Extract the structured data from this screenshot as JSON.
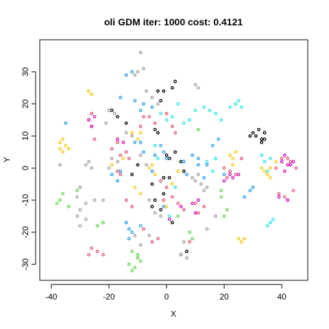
{
  "chart_data": {
    "type": "scatter",
    "title": "oli GDM iter: 1000 cost: 0.4121",
    "xlabel": "X",
    "ylabel": "Y",
    "xlim": [
      -44,
      49
    ],
    "ylim": [
      -35,
      40
    ],
    "xticks": [
      -40,
      -20,
      0,
      20,
      40
    ],
    "yticks": [
      -30,
      -20,
      -10,
      0,
      10,
      20,
      30
    ],
    "grid": false,
    "legend": "none",
    "marker": "open-circle",
    "series": [
      {
        "color": "#000000",
        "points": [
          [
            3,
            27
          ],
          [
            2,
            25
          ],
          [
            -1,
            24
          ],
          [
            -3,
            24
          ],
          [
            -2,
            21
          ],
          [
            -4,
            12
          ],
          [
            -3,
            11
          ],
          [
            -19,
            18
          ],
          [
            -17,
            16
          ],
          [
            -14,
            14
          ],
          [
            -12,
            -2
          ],
          [
            -10,
            1
          ],
          [
            -1,
            -3
          ],
          [
            -5,
            -5
          ],
          [
            -4,
            -10
          ],
          [
            -5,
            -12
          ],
          [
            -2,
            -13
          ],
          [
            -1,
            -8
          ],
          [
            1,
            -3
          ],
          [
            1,
            3
          ],
          [
            3,
            5
          ],
          [
            5,
            2
          ],
          [
            6,
            -1
          ],
          [
            0,
            4
          ],
          [
            2,
            -17
          ],
          [
            5,
            -27
          ],
          [
            7,
            -26
          ],
          [
            30,
            11
          ],
          [
            31,
            10
          ],
          [
            32,
            12
          ],
          [
            33,
            9
          ],
          [
            34,
            11
          ],
          [
            34,
            9
          ],
          [
            29,
            10
          ],
          [
            33,
            8
          ]
        ]
      },
      {
        "color": "#df536b",
        "points": [
          [
            -27,
            15
          ],
          [
            -26,
            17
          ],
          [
            -26,
            13
          ],
          [
            -25,
            9
          ],
          [
            -17,
            8
          ],
          [
            -16,
            4
          ],
          [
            -19,
            6
          ],
          [
            -8,
            16
          ],
          [
            -9,
            13
          ],
          [
            -6,
            16
          ],
          [
            -4,
            14
          ],
          [
            0,
            17
          ],
          [
            2,
            13
          ],
          [
            3,
            11
          ],
          [
            -14,
            5
          ],
          [
            -13,
            3
          ],
          [
            -16,
            -2
          ],
          [
            -17,
            -1
          ],
          [
            -14,
            -10
          ],
          [
            -12,
            -12
          ],
          [
            -26,
            -25
          ],
          [
            -27,
            -27
          ],
          [
            -24,
            -26
          ],
          [
            -22,
            -27
          ],
          [
            -8,
            -19
          ],
          [
            -5,
            -23
          ],
          [
            -3,
            -22
          ],
          [
            -1,
            -10
          ],
          [
            2,
            -9
          ],
          [
            4,
            -11
          ],
          [
            6,
            -13
          ],
          [
            10,
            -11
          ],
          [
            11,
            -14
          ],
          [
            13,
            -12
          ],
          [
            8,
            -23
          ],
          [
            20,
            0
          ],
          [
            21,
            -3
          ],
          [
            22,
            -1
          ],
          [
            24,
            -2
          ],
          [
            26,
            3
          ],
          [
            39,
            -8
          ],
          [
            41,
            -9
          ],
          [
            42,
            -10
          ],
          [
            44,
            -7
          ],
          [
            43,
            2
          ],
          [
            45,
            0
          ],
          [
            40,
            3
          ],
          [
            38,
            0
          ],
          [
            42,
            3
          ],
          [
            -2,
            -4
          ],
          [
            0,
            -6
          ]
        ]
      },
      {
        "color": "#61d04f",
        "points": [
          [
            -37,
            -10
          ],
          [
            -38,
            -11
          ],
          [
            -36,
            -8
          ],
          [
            -34,
            -12
          ],
          [
            -30,
            -6
          ],
          [
            -31,
            -7
          ],
          [
            -22,
            -17
          ],
          [
            -24,
            -18
          ],
          [
            -12,
            -26
          ],
          [
            -10,
            -27
          ],
          [
            -13,
            -30
          ],
          [
            -11,
            -31
          ],
          [
            -9,
            -29
          ],
          [
            -12,
            -32
          ],
          [
            -10,
            -28
          ],
          [
            4,
            -15
          ],
          [
            8,
            -20
          ],
          [
            9,
            -22
          ],
          [
            19,
            -7
          ],
          [
            19,
            -9
          ],
          [
            21,
            -13
          ],
          [
            20,
            -15
          ],
          [
            11,
            12
          ]
        ]
      },
      {
        "color": "#2297e6",
        "points": [
          [
            -35,
            14
          ],
          [
            -19,
            -2
          ],
          [
            -16,
            -1
          ],
          [
            -17,
            -4
          ],
          [
            -14,
            -17
          ],
          [
            -13,
            -19
          ],
          [
            -12,
            -20
          ],
          [
            -13,
            -22
          ],
          [
            -9,
            -18
          ],
          [
            -14,
            29
          ],
          [
            -12,
            30
          ],
          [
            -16,
            22
          ],
          [
            -11,
            21
          ],
          [
            -9,
            18
          ],
          [
            -9,
            8
          ],
          [
            -8,
            5
          ],
          [
            -5,
            -1
          ],
          [
            -4,
            4
          ],
          [
            -2,
            7
          ],
          [
            -1,
            5
          ],
          [
            0,
            3
          ],
          [
            -1,
            -12
          ],
          [
            6,
            2
          ],
          [
            7,
            -2
          ],
          [
            9,
            4
          ],
          [
            11,
            3
          ],
          [
            14,
            1
          ],
          [
            16,
            7
          ],
          [
            18,
            9
          ],
          [
            11,
            1
          ],
          [
            13,
            -3
          ],
          [
            20,
            -2
          ],
          [
            27,
            -9
          ],
          [
            29,
            -7
          ],
          [
            30,
            -6
          ],
          [
            -11,
            8
          ],
          [
            -8,
            20
          ],
          [
            -5,
            19
          ]
        ]
      },
      {
        "color": "#28e2e5",
        "points": [
          [
            -2,
            17
          ],
          [
            0,
            15
          ],
          [
            2,
            16
          ],
          [
            4,
            20
          ],
          [
            6,
            14
          ],
          [
            8,
            15
          ],
          [
            10,
            18
          ],
          [
            13,
            19
          ],
          [
            15,
            18
          ],
          [
            17,
            17
          ],
          [
            19,
            15
          ],
          [
            14,
            2
          ],
          [
            16,
            -1
          ],
          [
            17,
            3
          ],
          [
            22,
            19
          ],
          [
            24,
            20
          ],
          [
            25,
            21
          ],
          [
            26,
            19
          ],
          [
            36,
            -17
          ],
          [
            35,
            -18
          ],
          [
            37,
            -16
          ],
          [
            34,
            2
          ],
          [
            36,
            3
          ],
          [
            35,
            -1
          ],
          [
            33,
            4
          ],
          [
            -4,
            7
          ],
          [
            -3,
            3
          ],
          [
            3,
            -6
          ],
          [
            1,
            -15
          ]
        ]
      },
      {
        "color": "#cd0bbc",
        "points": [
          [
            -27,
            15
          ],
          [
            -25,
            16
          ],
          [
            -26,
            13
          ],
          [
            -17,
            9
          ],
          [
            -15,
            8
          ],
          [
            1,
            -16
          ],
          [
            5,
            -12
          ],
          [
            9,
            -11
          ],
          [
            10,
            -14
          ],
          [
            11,
            -10
          ],
          [
            20,
            -4
          ],
          [
            22,
            -2
          ],
          [
            23,
            -3
          ],
          [
            25,
            -2
          ],
          [
            40,
            2
          ],
          [
            42,
            1
          ],
          [
            43,
            1
          ],
          [
            41,
            -1
          ],
          [
            44,
            2
          ],
          [
            41,
            4
          ],
          [
            39,
            -9
          ],
          [
            42,
            -10
          ]
        ]
      },
      {
        "color": "#f5c710",
        "points": [
          [
            -37,
            8
          ],
          [
            -36,
            9
          ],
          [
            -35,
            7
          ],
          [
            -37,
            6
          ],
          [
            -34,
            6
          ],
          [
            -36,
            5
          ],
          [
            -27,
            24
          ],
          [
            -26,
            23
          ],
          [
            -19,
            1
          ],
          [
            -15,
            3
          ],
          [
            -12,
            11
          ],
          [
            -10,
            9
          ],
          [
            -9,
            11
          ],
          [
            -11,
            -6
          ],
          [
            -9,
            -8
          ],
          [
            -6,
            0
          ],
          [
            -5,
            1
          ],
          [
            -4,
            -2
          ],
          [
            0,
            -12
          ],
          [
            2,
            -5
          ],
          [
            4,
            -1
          ],
          [
            22,
            4
          ],
          [
            23,
            3
          ],
          [
            24,
            5
          ],
          [
            23,
            1
          ],
          [
            25,
            -22
          ],
          [
            26,
            -23
          ],
          [
            27,
            -22
          ],
          [
            33,
            0
          ],
          [
            35,
            -2
          ],
          [
            36,
            -3
          ],
          [
            38,
            2
          ],
          [
            34,
            -1
          ],
          [
            36,
            0
          ]
        ]
      },
      {
        "color": "#9e9e9e",
        "points": [
          [
            -9,
            36
          ],
          [
            -8,
            31
          ],
          [
            -10,
            30
          ],
          [
            -11,
            29
          ],
          [
            -7,
            24
          ],
          [
            -5,
            22
          ],
          [
            -3,
            20
          ],
          [
            -20,
            18
          ],
          [
            -18,
            17
          ],
          [
            -21,
            14
          ],
          [
            -14,
            11
          ],
          [
            -12,
            10
          ],
          [
            -28,
            1
          ],
          [
            -27,
            2
          ],
          [
            -26,
            0
          ],
          [
            -30,
            -6
          ],
          [
            -31,
            -9
          ],
          [
            -28,
            -11
          ],
          [
            -25,
            -10
          ],
          [
            -22,
            -10
          ],
          [
            -30,
            -13
          ],
          [
            -28,
            -16
          ],
          [
            -30,
            -18
          ],
          [
            -31,
            -15
          ],
          [
            -20,
            0
          ],
          [
            -19,
            3
          ],
          [
            -17,
            2
          ],
          [
            -37,
            1
          ],
          [
            -9,
            4
          ],
          [
            -7,
            1
          ],
          [
            -6,
            -10
          ],
          [
            -4,
            -14
          ],
          [
            -2,
            -15
          ],
          [
            -6,
            -21
          ],
          [
            5,
            -27
          ],
          [
            7,
            -28
          ],
          [
            6,
            -23
          ],
          [
            10,
            26
          ],
          [
            11,
            25
          ],
          [
            9,
            -3
          ],
          [
            10,
            -4
          ],
          [
            12,
            -5
          ],
          [
            14,
            -6
          ],
          [
            11,
            -2
          ],
          [
            13,
            -7
          ],
          [
            17,
            -15
          ],
          [
            14,
            -19
          ],
          [
            -11,
            -21
          ],
          [
            -9,
            -24
          ]
        ]
      }
    ]
  }
}
